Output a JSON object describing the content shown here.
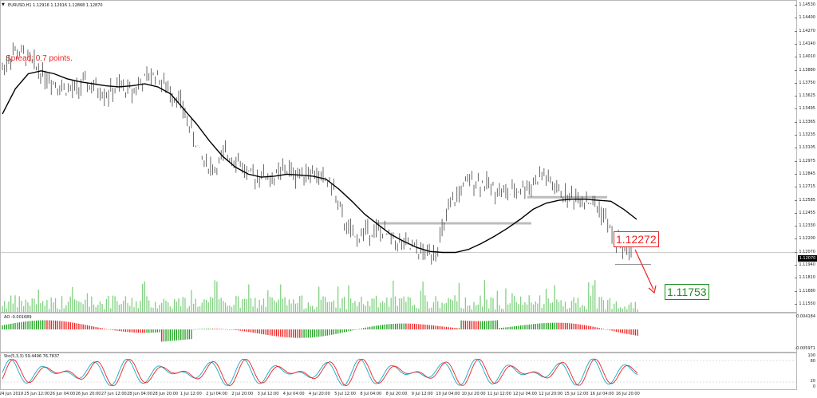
{
  "chart": {
    "title": "EURUSD,H1  1.12916 1.12916 1.12868 1.12870",
    "spread": "Spread: 0.7 points.",
    "price_box_upper": "1.12272",
    "price_box_lower": "1.11753",
    "current_price": "1.12070"
  },
  "price_axis": [
    "1.14530",
    "1.14400",
    "1.14270",
    "1.14140",
    "1.14010",
    "1.13880",
    "1.13750",
    "1.13625",
    "1.13495",
    "1.13365",
    "1.13235",
    "1.13105",
    "1.12975",
    "1.12845",
    "1.12715",
    "1.12585",
    "1.12455",
    "1.12330",
    "1.12200",
    "1.12070",
    "1.11940",
    "1.11810",
    "1.11680",
    "1.11550"
  ],
  "ao": {
    "title": "AO -0.001689",
    "max_label": "0.004184",
    "min_label": "-0.005971"
  },
  "stoch": {
    "title": "Sto(5,3,3) 59.4496 76.7837",
    "labels": [
      "100",
      "80",
      "20",
      "0"
    ]
  },
  "time_axis": [
    "24 Jun 2019",
    "25 Jun 12:00",
    "26 Jun 04:00",
    "26 Jun 20:00",
    "27 Jun 12:00",
    "28 Jun 04:00",
    "28 Jun 20:00",
    "1 Jul 12:00",
    "2 Jul 04:00",
    "2 Jul 20:00",
    "3 Jul 12:00",
    "4 Jul 04:00",
    "4 Jul 20:00",
    "5 Jul 12:00",
    "8 Jul 04:00",
    "8 Jul 20:00",
    "9 Jul 12:00",
    "10 Jul 04:00",
    "10 Jul 20:00",
    "11 Jul 12:00",
    "12 Jul 04:00",
    "12 Jul 20:00",
    "15 Jul 12:00",
    "16 Jul 04:00",
    "16 Jul 20:00"
  ],
  "colors": {
    "up": "#1a9e1a",
    "down": "#ee1c1c",
    "volume": "#7fd07f",
    "ma": "#000000",
    "bars": "#444444"
  },
  "chart_data": {
    "type": "line",
    "series": [
      {
        "values": [
          1.139,
          1.1408,
          1.1402,
          1.139,
          1.138,
          1.1372,
          1.1368,
          1.1375,
          1.137,
          1.1365,
          1.1372,
          1.1368,
          1.1378,
          1.1385,
          1.137,
          1.136,
          1.133,
          1.13,
          1.129,
          1.1305,
          1.13,
          1.1282,
          1.1285,
          1.128,
          1.129,
          1.1285,
          1.1288,
          1.1282,
          1.1275,
          1.1238,
          1.122,
          1.123,
          1.1228,
          1.1222,
          1.1215,
          1.121,
          1.1205,
          1.1212,
          1.125,
          1.127,
          1.128,
          1.1275,
          1.127,
          1.1265,
          1.127,
          1.1275,
          1.1285,
          1.127,
          1.1262,
          1.1262,
          1.1258,
          1.1248,
          1.122,
          1.121,
          1.1215
        ]
      },
      {
        "values": [
          1.1345,
          1.137,
          1.1385,
          1.1388,
          1.1385,
          1.138,
          1.1377,
          1.1375,
          1.1373,
          1.1372,
          1.1373,
          1.1375,
          1.1372,
          1.1365,
          1.135,
          1.1335,
          1.1318,
          1.1303,
          1.1292,
          1.1285,
          1.1282,
          1.1283,
          1.1285,
          1.1284,
          1.1283,
          1.128,
          1.127,
          1.1258,
          1.1245,
          1.1235,
          1.1225,
          1.1218,
          1.1212,
          1.1208,
          1.1207,
          1.1207,
          1.121,
          1.1216,
          1.1223,
          1.1231,
          1.124,
          1.125,
          1.1256,
          1.1259,
          1.126,
          1.126,
          1.1259,
          1.1258,
          1.125,
          1.124
        ]
      }
    ],
    "ylim": [
      1.1155,
      1.1453
    ],
    "grid": false
  }
}
